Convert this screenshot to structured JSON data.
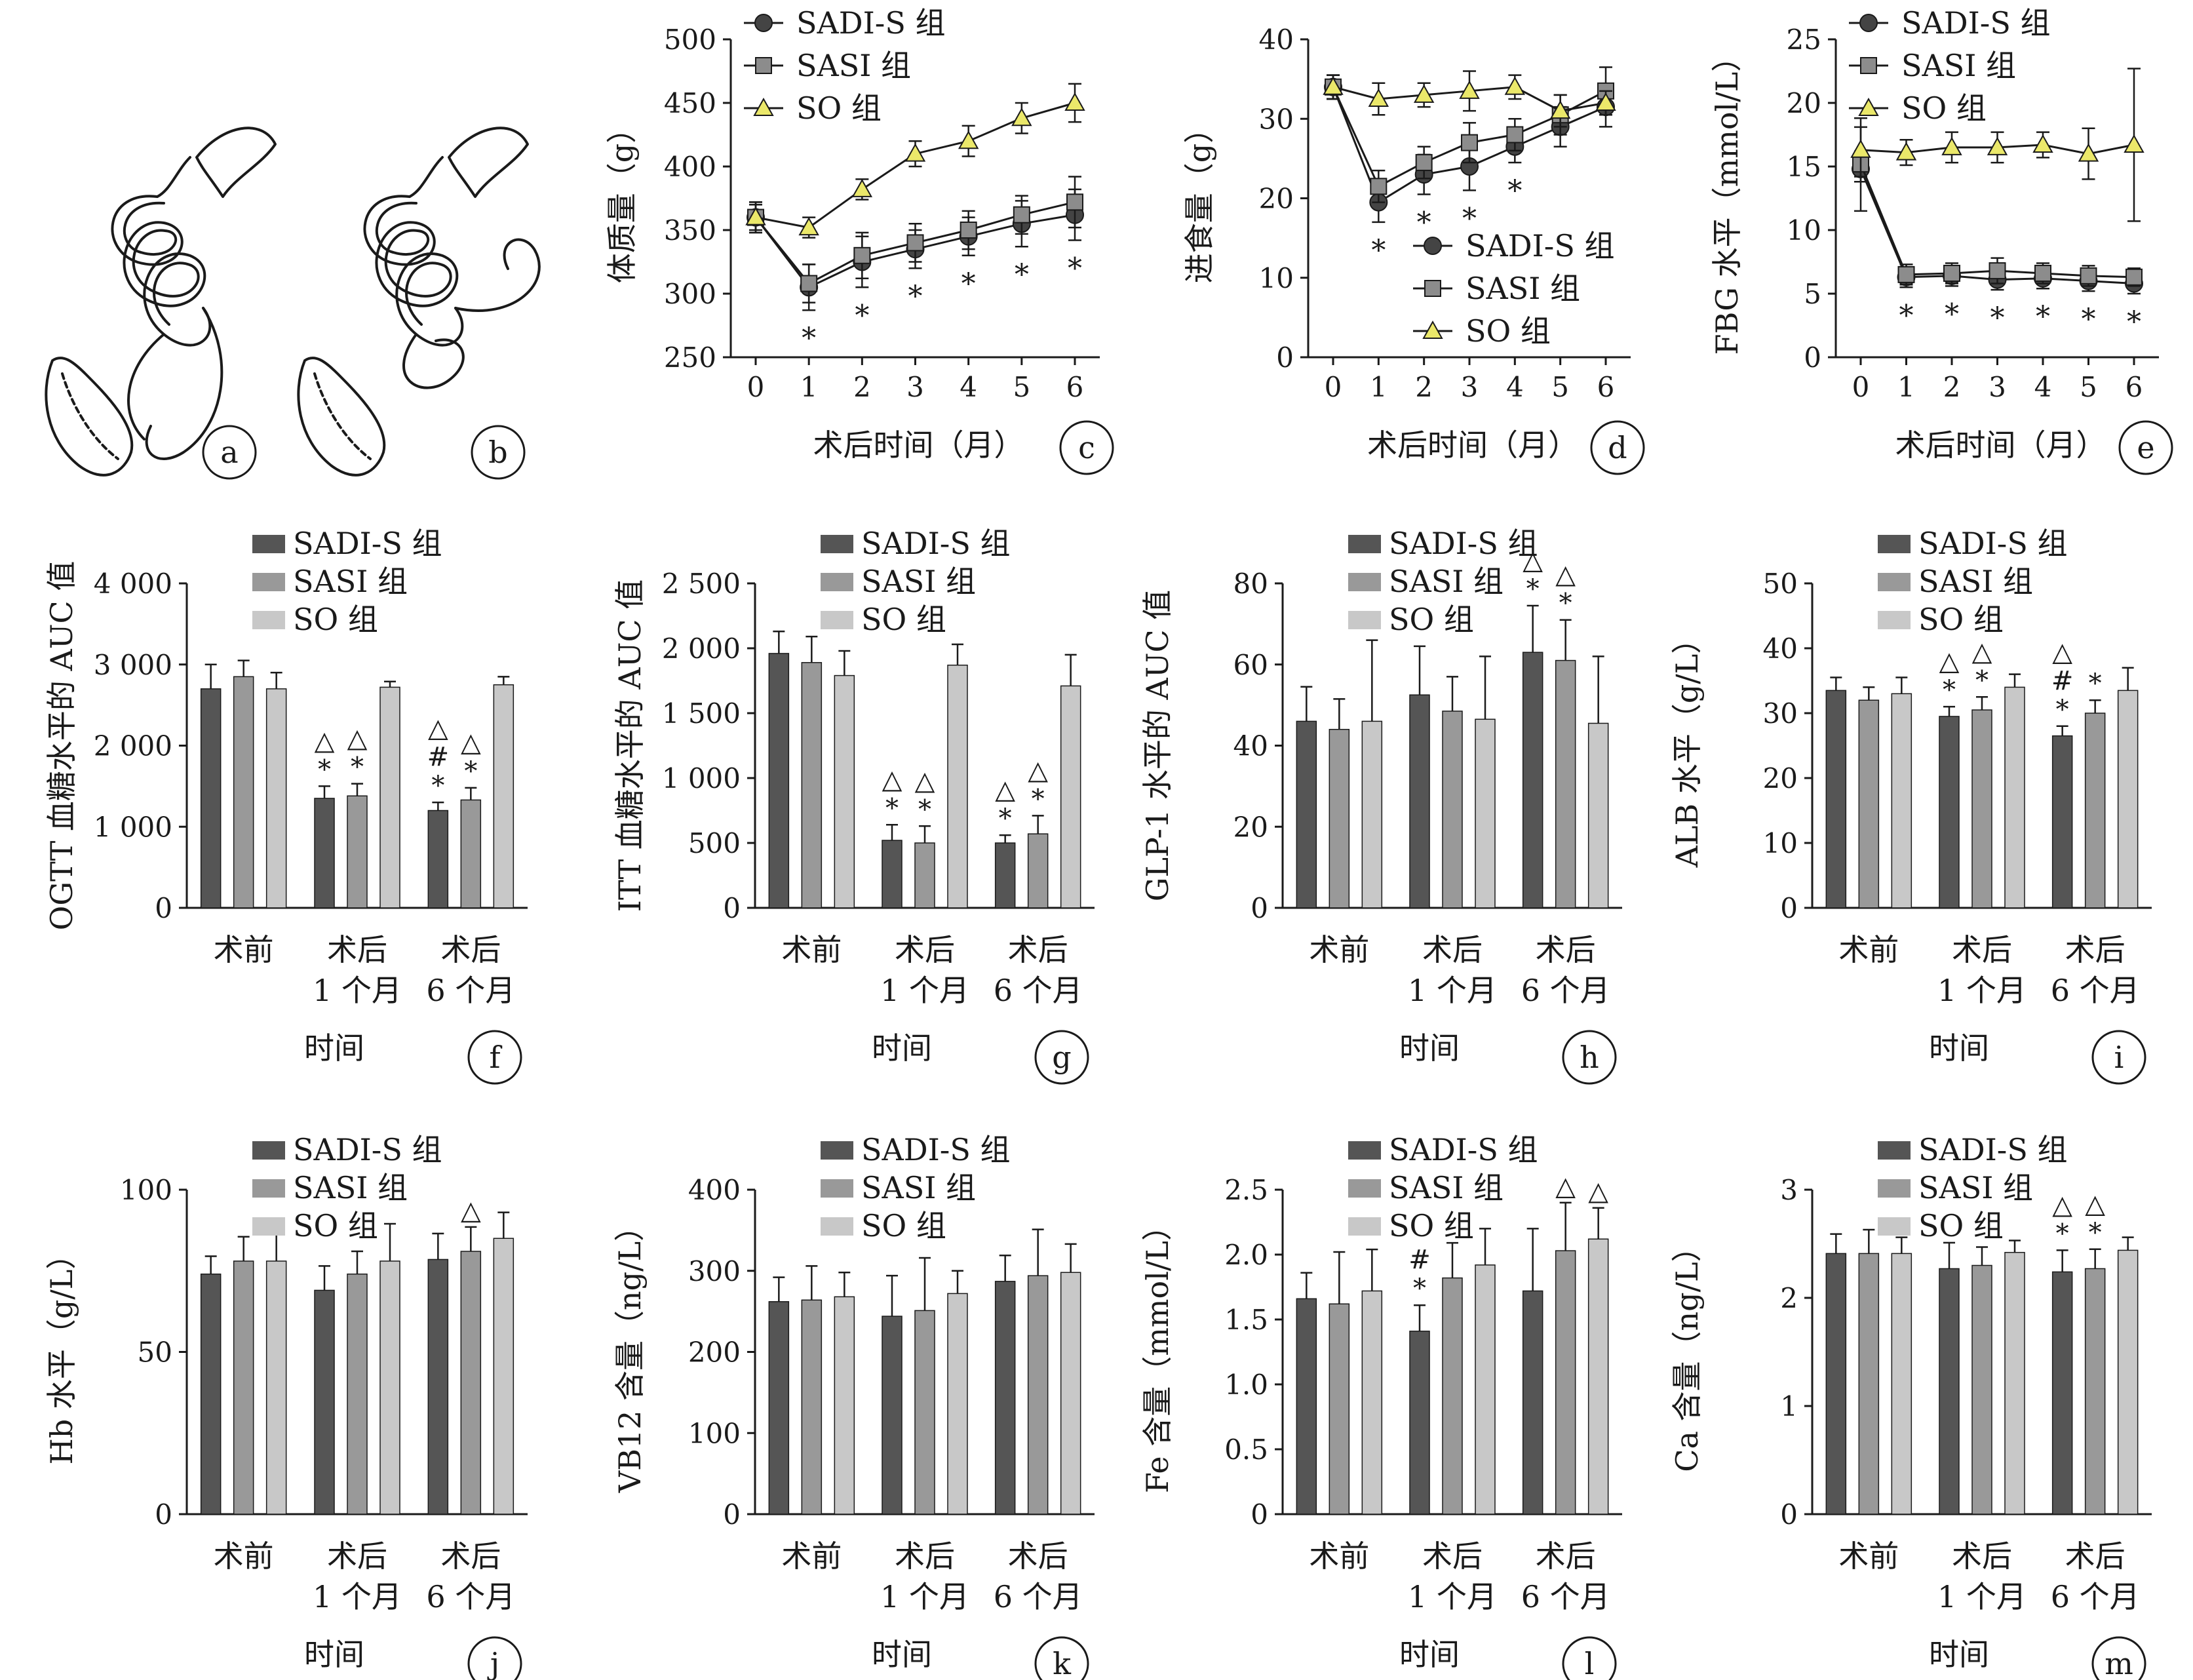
{
  "figure": {
    "panel_labels": [
      "a",
      "b",
      "c",
      "d",
      "e",
      "f",
      "g",
      "h",
      "i",
      "j",
      "k",
      "l",
      "m"
    ]
  },
  "legend": {
    "line": [
      "SADI-S 组",
      "SASI 组",
      "SO 组"
    ],
    "bar": [
      "SADI-S 组",
      "SASI 组",
      "SO 组"
    ]
  },
  "colors": {
    "SADI-S": "#555555",
    "SASI": "#999999",
    "SO": "#c8c8c8",
    "SO_marker": "#ebe86a",
    "axis": "#1a1a1a"
  },
  "icons": [
    "sadi-s-anatomy-diagram",
    "sasi-anatomy-diagram"
  ],
  "chart_data": [
    {
      "panel": "c",
      "type": "line",
      "xlabel": "术后时间（月）",
      "ylabel": "体质量（g）",
      "x": [
        0,
        1,
        2,
        3,
        4,
        5,
        6
      ],
      "ylim": [
        250,
        500
      ],
      "yticks": [
        250,
        300,
        350,
        400,
        450,
        500
      ],
      "legend_position": "top-left",
      "series": [
        {
          "name": "SADI-S 组",
          "marker": "circle",
          "values": [
            360,
            305,
            325,
            335,
            345,
            355,
            362
          ],
          "err": [
            12,
            18,
            20,
            15,
            15,
            18,
            20
          ]
        },
        {
          "name": "SASI 组",
          "marker": "square",
          "values": [
            360,
            308,
            330,
            340,
            350,
            362,
            372
          ],
          "err": [
            12,
            15,
            18,
            15,
            15,
            15,
            20
          ]
        },
        {
          "name": "SO 组",
          "marker": "triangle",
          "values": [
            360,
            352,
            382,
            410,
            420,
            438,
            450
          ],
          "err": [
            10,
            8,
            8,
            10,
            12,
            12,
            15
          ]
        }
      ],
      "annotations": [
        {
          "series": "SADI-S 组",
          "x": [
            1,
            2,
            3,
            4,
            5,
            6
          ],
          "text": "*"
        }
      ]
    },
    {
      "panel": "d",
      "type": "line",
      "xlabel": "术后时间（月）",
      "ylabel": "进食量（g）",
      "x": [
        0,
        1,
        2,
        3,
        4,
        5,
        6
      ],
      "ylim": [
        0,
        40
      ],
      "yticks": [
        0,
        10,
        20,
        30,
        40
      ],
      "legend_position": "center-right",
      "series": [
        {
          "name": "SADI-S 组",
          "marker": "circle",
          "values": [
            34,
            19.5,
            23,
            24,
            26.5,
            29,
            31.5
          ],
          "err": [
            1.5,
            2.5,
            2.5,
            3,
            2,
            2.5,
            2.5
          ]
        },
        {
          "name": "SASI 组",
          "marker": "square",
          "values": [
            34,
            21.5,
            24.5,
            27,
            28,
            30.5,
            33.5
          ],
          "err": [
            1.5,
            2,
            2,
            2.5,
            2,
            2.5,
            3
          ]
        },
        {
          "name": "SO 组",
          "marker": "triangle",
          "values": [
            34,
            32.5,
            33,
            33.5,
            34,
            31,
            32
          ],
          "err": [
            1.5,
            2,
            1.5,
            2.5,
            1.5,
            2,
            1.5
          ]
        }
      ],
      "annotations": [
        {
          "series": "SADI-S 组",
          "x": [
            1,
            2,
            3,
            4
          ],
          "text": "*"
        }
      ]
    },
    {
      "panel": "e",
      "type": "line",
      "xlabel": "术后时间（月）",
      "ylabel": "FBG 水平（mmol/L）",
      "x": [
        0,
        1,
        2,
        3,
        4,
        5,
        6
      ],
      "ylim": [
        0,
        25
      ],
      "yticks": [
        0,
        5,
        10,
        15,
        20,
        25
      ],
      "legend_position": "top-left",
      "series": [
        {
          "name": "SADI-S 组",
          "marker": "circle",
          "values": [
            14.8,
            6.3,
            6.4,
            6.1,
            6.2,
            6.0,
            5.8
          ],
          "err": [
            3.3,
            0.8,
            0.8,
            0.8,
            0.8,
            0.8,
            0.8
          ]
        },
        {
          "name": "SASI 组",
          "marker": "square",
          "values": [
            15.2,
            6.5,
            6.6,
            6.8,
            6.6,
            6.4,
            6.3
          ],
          "err": [
            1,
            0.8,
            0.8,
            1,
            0.8,
            0.8,
            0.7
          ]
        },
        {
          "name": "SO 组",
          "marker": "triangle",
          "values": [
            16.3,
            16.1,
            16.5,
            16.5,
            16.7,
            16.0,
            16.7
          ],
          "err": [
            2.5,
            1,
            1.2,
            1.2,
            1,
            2,
            6
          ]
        }
      ],
      "annotations": [
        {
          "series": "SADI-S 组",
          "x": [
            1,
            2,
            3,
            4,
            5,
            6
          ],
          "text": "*"
        }
      ]
    },
    {
      "panel": "f",
      "type": "bar",
      "xlabel": "时间",
      "ylabel": "OGTT 血糖水平的 AUC 值",
      "categories": [
        "术前",
        "术后\n1 个月",
        "术后\n6 个月"
      ],
      "ylim": [
        0,
        4000
      ],
      "yticks": [
        0,
        1000,
        2000,
        3000,
        4000
      ],
      "ytick_labels": [
        "0",
        "1 000",
        "2 000",
        "3 000",
        "4 000"
      ],
      "series": [
        {
          "name": "SADI-S 组",
          "values": [
            2700,
            1350,
            1200
          ],
          "err": [
            300,
            150,
            100
          ],
          "marks": [
            "",
            "△\n*",
            "△\n#\n*"
          ]
        },
        {
          "name": "SASI 组",
          "values": [
            2850,
            1380,
            1330
          ],
          "err": [
            200,
            150,
            150
          ],
          "marks": [
            "",
            "△\n*",
            "△\n*"
          ]
        },
        {
          "name": "SO 组",
          "values": [
            2700,
            2720,
            2750
          ],
          "err": [
            200,
            70,
            100
          ],
          "marks": [
            "",
            "",
            ""
          ]
        }
      ]
    },
    {
      "panel": "g",
      "type": "bar",
      "xlabel": "时间",
      "ylabel": "ITT 血糖水平的 AUC 值",
      "categories": [
        "术前",
        "术后\n1 个月",
        "术后\n6 个月"
      ],
      "ylim": [
        0,
        2500
      ],
      "yticks": [
        0,
        500,
        1000,
        1500,
        2000,
        2500
      ],
      "ytick_labels": [
        "0",
        "500",
        "1 000",
        "1 500",
        "2 000",
        "2 500"
      ],
      "series": [
        {
          "name": "SADI-S 组",
          "values": [
            1960,
            520,
            500
          ],
          "err": [
            170,
            120,
            60
          ],
          "marks": [
            "",
            "△\n*",
            "△\n*"
          ]
        },
        {
          "name": "SASI 组",
          "values": [
            1890,
            500,
            570
          ],
          "err": [
            200,
            130,
            140
          ],
          "marks": [
            "",
            "△\n*",
            "△\n*"
          ]
        },
        {
          "name": "SO 组",
          "values": [
            1790,
            1870,
            1710
          ],
          "err": [
            190,
            160,
            240
          ],
          "marks": [
            "",
            "",
            ""
          ]
        }
      ]
    },
    {
      "panel": "h",
      "type": "bar",
      "xlabel": "时间",
      "ylabel": "GLP-1 水平的 AUC 值",
      "categories": [
        "术前",
        "术后\n1 个月",
        "术后\n6 个月"
      ],
      "ylim": [
        0,
        80
      ],
      "yticks": [
        0,
        20,
        40,
        60,
        80
      ],
      "ytick_labels": [
        "0",
        "20",
        "40",
        "60",
        "80"
      ],
      "series": [
        {
          "name": "SADI-S 组",
          "values": [
            46,
            52.5,
            63
          ],
          "err": [
            8.5,
            12,
            11.5
          ],
          "marks": [
            "",
            "",
            "△\n*"
          ]
        },
        {
          "name": "SASI 组",
          "values": [
            44,
            48.5,
            61
          ],
          "err": [
            7.5,
            8.5,
            10
          ],
          "marks": [
            "",
            "",
            "△\n*"
          ]
        },
        {
          "name": "SO 组",
          "values": [
            46,
            46.5,
            45.5
          ],
          "err": [
            20,
            15.5,
            16.5
          ],
          "marks": [
            "",
            "",
            ""
          ]
        }
      ]
    },
    {
      "panel": "i",
      "type": "bar",
      "xlabel": "时间",
      "ylabel": "ALB 水平（g/L）",
      "categories": [
        "术前",
        "术后\n1 个月",
        "术后\n6 个月"
      ],
      "ylim": [
        0,
        50
      ],
      "yticks": [
        0,
        10,
        20,
        30,
        40,
        50
      ],
      "ytick_labels": [
        "0",
        "10",
        "20",
        "30",
        "40",
        "50"
      ],
      "series": [
        {
          "name": "SADI-S 组",
          "values": [
            33.5,
            29.5,
            26.5
          ],
          "err": [
            2,
            1.5,
            1.5
          ],
          "marks": [
            "",
            "△\n*",
            "△\n#\n*"
          ]
        },
        {
          "name": "SASI 组",
          "values": [
            32,
            30.5,
            30
          ],
          "err": [
            2,
            2,
            2
          ],
          "marks": [
            "",
            "△\n*",
            "*"
          ]
        },
        {
          "name": "SO 组",
          "values": [
            33,
            34,
            33.5
          ],
          "err": [
            2.5,
            2,
            3.5
          ],
          "marks": [
            "",
            "",
            ""
          ]
        }
      ]
    },
    {
      "panel": "j",
      "type": "bar",
      "xlabel": "时间",
      "ylabel": "Hb 水平（g/L）",
      "categories": [
        "术前",
        "术后\n1 个月",
        "术后\n6 个月"
      ],
      "ylim": [
        0,
        100
      ],
      "yticks": [
        0,
        50,
        100
      ],
      "ytick_labels": [
        "0",
        "50",
        "100"
      ],
      "series": [
        {
          "name": "SADI-S 组",
          "values": [
            74,
            69,
            78.5
          ],
          "err": [
            5.5,
            7.5,
            8
          ],
          "marks": [
            "",
            "",
            ""
          ]
        },
        {
          "name": "SASI 组",
          "values": [
            78,
            74,
            81
          ],
          "err": [
            7.5,
            7,
            7.5
          ],
          "marks": [
            "",
            "",
            "△"
          ]
        },
        {
          "name": "SO 组",
          "values": [
            78,
            78,
            85
          ],
          "err": [
            9.5,
            11.5,
            8
          ],
          "marks": [
            "",
            "",
            ""
          ]
        }
      ]
    },
    {
      "panel": "k",
      "type": "bar",
      "xlabel": "时间",
      "ylabel": "VB12 含量（ng/L）",
      "categories": [
        "术前",
        "术后\n1 个月",
        "术后\n6 个月"
      ],
      "ylim": [
        0,
        400
      ],
      "yticks": [
        0,
        100,
        200,
        300,
        400
      ],
      "ytick_labels": [
        "0",
        "100",
        "200",
        "300",
        "400"
      ],
      "series": [
        {
          "name": "SADI-S 组",
          "values": [
            262,
            244,
            287
          ],
          "err": [
            30,
            50,
            32
          ],
          "marks": [
            "",
            "",
            ""
          ]
        },
        {
          "name": "SASI 组",
          "values": [
            264,
            251,
            294
          ],
          "err": [
            42,
            65,
            57
          ],
          "marks": [
            "",
            "",
            ""
          ]
        },
        {
          "name": "SO 组",
          "values": [
            268,
            272,
            298
          ],
          "err": [
            30,
            28,
            35
          ],
          "marks": [
            "",
            "",
            ""
          ]
        }
      ]
    },
    {
      "panel": "l",
      "type": "bar",
      "xlabel": "时间",
      "ylabel": "Fe 含量（mmol/L）",
      "categories": [
        "术前",
        "术后\n1 个月",
        "术后\n6 个月"
      ],
      "ylim": [
        0,
        2.5
      ],
      "yticks": [
        0,
        0.5,
        1.0,
        1.5,
        2.0,
        2.5
      ],
      "ytick_labels": [
        "0",
        "0.5",
        "1.0",
        "1.5",
        "2.0",
        "2.5"
      ],
      "series": [
        {
          "name": "SADI-S 组",
          "values": [
            1.66,
            1.41,
            1.72
          ],
          "err": [
            0.2,
            0.2,
            0.48
          ],
          "marks": [
            "",
            "#\n*",
            ""
          ]
        },
        {
          "name": "SASI 组",
          "values": [
            1.62,
            1.82,
            2.03
          ],
          "err": [
            0.4,
            0.27,
            0.37
          ],
          "marks": [
            "",
            "",
            "△"
          ]
        },
        {
          "name": "SO 组",
          "values": [
            1.72,
            1.92,
            2.12
          ],
          "err": [
            0.32,
            0.28,
            0.24
          ],
          "marks": [
            "",
            "",
            "△"
          ]
        }
      ]
    },
    {
      "panel": "m",
      "type": "bar",
      "xlabel": "时间",
      "ylabel": "Ca 含量（ng/L）",
      "categories": [
        "术前",
        "术后\n1 个月",
        "术后\n6 个月"
      ],
      "ylim": [
        0,
        3
      ],
      "yticks": [
        0,
        1,
        2,
        3
      ],
      "ytick_labels": [
        "0",
        "1",
        "2",
        "3"
      ],
      "series": [
        {
          "name": "SADI-S 组",
          "values": [
            2.41,
            2.27,
            2.24
          ],
          "err": [
            0.18,
            0.24,
            0.2
          ],
          "marks": [
            "",
            "",
            "△\n*"
          ]
        },
        {
          "name": "SASI 组",
          "values": [
            2.41,
            2.3,
            2.27
          ],
          "err": [
            0.22,
            0.17,
            0.18
          ],
          "marks": [
            "",
            "",
            "△\n*"
          ]
        },
        {
          "name": "SO 组",
          "values": [
            2.41,
            2.42,
            2.44
          ],
          "err": [
            0.15,
            0.11,
            0.12
          ],
          "marks": [
            "",
            "",
            ""
          ]
        }
      ]
    }
  ]
}
